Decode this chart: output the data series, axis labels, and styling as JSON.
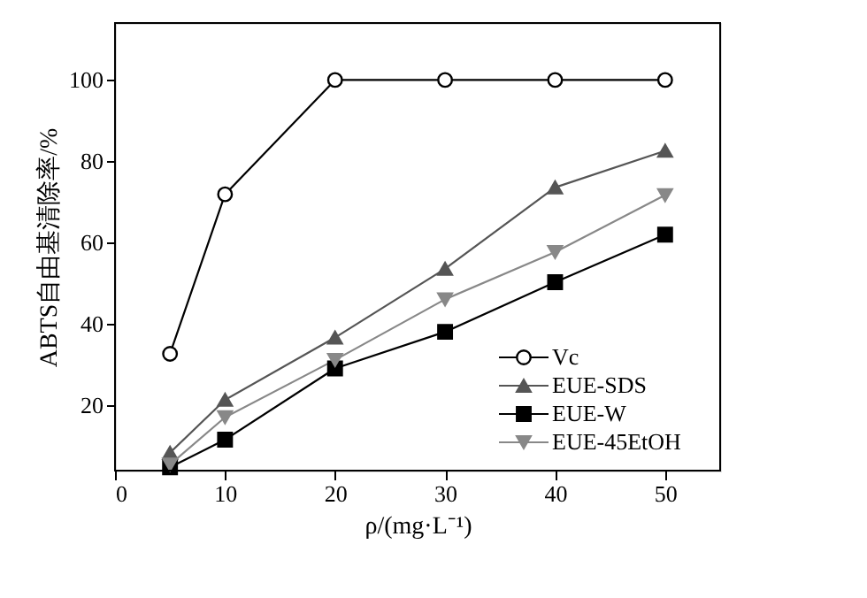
{
  "chart_data": {
    "type": "line",
    "xlabel": "ρ/(mg·L⁻¹)",
    "ylabel": "ABTS自由基清除率/%",
    "x": [
      5,
      10,
      20,
      30,
      40,
      50
    ],
    "series": [
      {
        "name": "Vc",
        "color": "#000000",
        "marker": "circle",
        "values": [
          32.7,
          71.9,
          100,
          100,
          100,
          100
        ]
      },
      {
        "name": "EUE-SDS",
        "color": "#555555",
        "marker": "triangle",
        "values": [
          8.4,
          21.4,
          36.7,
          53.6,
          73.6,
          82.6
        ]
      },
      {
        "name": "EUE-W",
        "color": "#000000",
        "marker": "square",
        "values": [
          4.8,
          11.6,
          29.1,
          38.1,
          50.3,
          62
        ]
      },
      {
        "name": "EUE-45EtOH",
        "color": "#888888",
        "marker": "triangle_down",
        "values": [
          5.5,
          17.1,
          31.2,
          46.1,
          57.7,
          71.7
        ]
      }
    ],
    "xlim": [
      0,
      55
    ],
    "xticks": [
      0,
      10,
      20,
      30,
      40,
      50
    ],
    "ylim": [
      4,
      114
    ],
    "yticks": [
      20,
      40,
      60,
      80,
      100
    ],
    "grid": false,
    "legend": "bottom right",
    "line_style": "solid"
  }
}
